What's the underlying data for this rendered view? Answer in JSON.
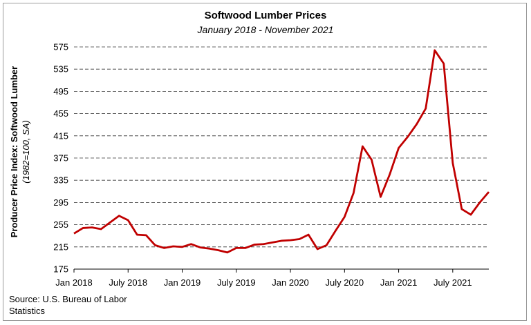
{
  "chart_data": {
    "type": "line",
    "title": "Softwood Lumber Prices",
    "subtitle": "January 2018 - November 2021",
    "ylabel": "Producer Price Index: Softwood Lumber",
    "ylabel_sub": "(1982=100, SA)",
    "xlabel": "",
    "ylim": [
      175,
      575
    ],
    "yticks": [
      175,
      215,
      255,
      295,
      335,
      375,
      415,
      455,
      495,
      535,
      575
    ],
    "grid": "horizontal-dashed",
    "xtick_labels": [
      "Jan 2018",
      "July 2018",
      "Jan 2019",
      "July 2019",
      "Jan 2020",
      "July 2020",
      "Jan 2021",
      "July 2021"
    ],
    "xtick_positions": [
      0,
      6,
      12,
      18,
      24,
      30,
      36,
      42
    ],
    "series_color": "#c00000",
    "series": [
      {
        "values": [
          239,
          249,
          250,
          247,
          259,
          271,
          263,
          237,
          236,
          218,
          213,
          216,
          215,
          220,
          214,
          212,
          209,
          205,
          213,
          213,
          219,
          220,
          223,
          226,
          227,
          229,
          237,
          211,
          218,
          244,
          269,
          312,
          396,
          372,
          305,
          345,
          393,
          413,
          436,
          464,
          569,
          545,
          366,
          283,
          273,
          295,
          314
        ]
      }
    ]
  },
  "source": "Source: U.S. Bureau of Labor Statistics"
}
